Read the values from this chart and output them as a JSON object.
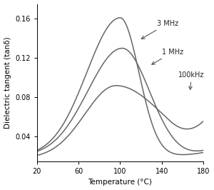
{
  "title": "",
  "xlabel": "Temperature (°C)",
  "ylabel": "Dielectric tangent (tanδ)",
  "xlim": [
    20,
    180
  ],
  "ylim": [
    0.015,
    0.175
  ],
  "yticks": [
    0.04,
    0.08,
    0.12,
    0.16
  ],
  "xticks": [
    20,
    60,
    100,
    140,
    180
  ],
  "line_color": "#666666",
  "bg_color": "#ffffff"
}
